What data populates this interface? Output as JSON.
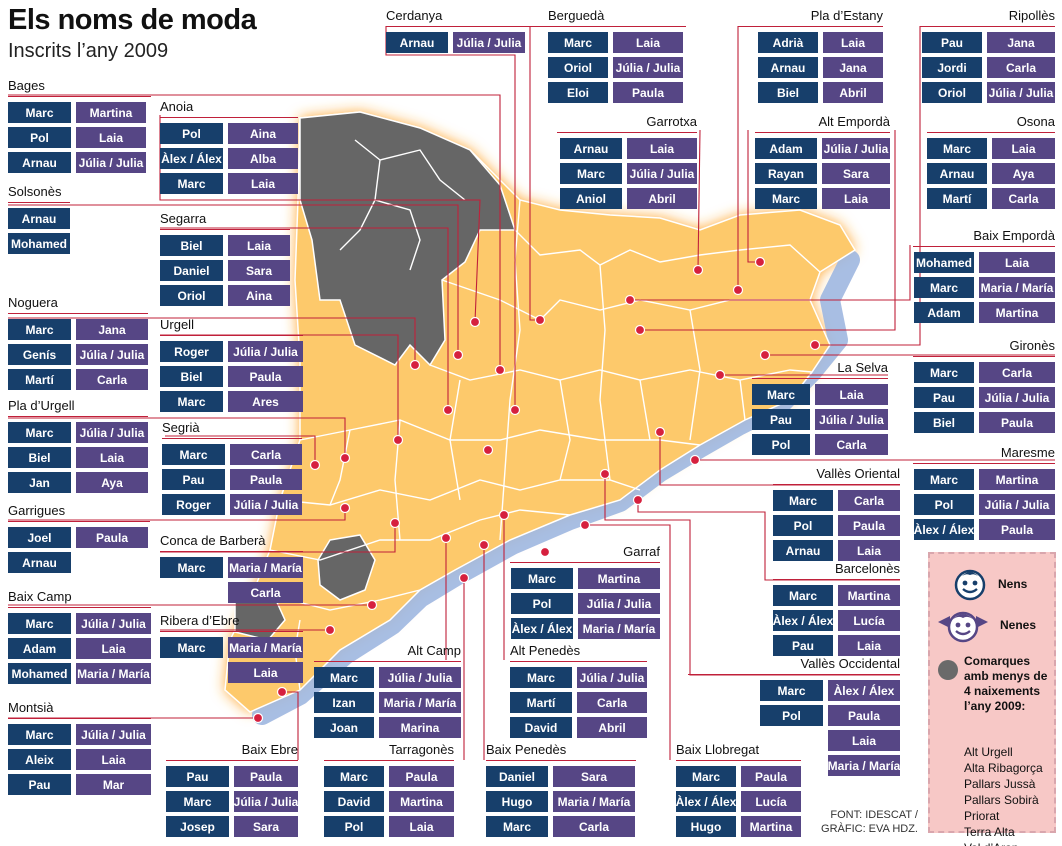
{
  "title": "Els noms de moda",
  "subtitle": "Inscrits l’any 2009",
  "colors": {
    "boys": "#173f6b",
    "girls": "#564685",
    "map_fill": "#fdc96b",
    "glow": "#ffa326",
    "coast": "#9fb7e0",
    "excluded": "#666666",
    "pins": "#d6203e",
    "leader": "#c0203a"
  },
  "regions": [
    {
      "name": "Cerdanya",
      "boys": [
        "Arnau"
      ],
      "girls": [
        "Júlia / Julia"
      ]
    },
    {
      "name": "Berguedà",
      "boys": [
        "Marc",
        "Oriol",
        "Eloi"
      ],
      "girls": [
        "Laia",
        "Júlia / Julia",
        "Paula"
      ]
    },
    {
      "name": "Pla d’Estany",
      "boys": [
        "Adrià",
        "Arnau",
        "Biel"
      ],
      "girls": [
        "Laia",
        "Jana",
        "Abril"
      ]
    },
    {
      "name": "Ripollès",
      "boys": [
        "Pau",
        "Jordi",
        "Oriol"
      ],
      "girls": [
        "Jana",
        "Carla",
        "Júlia / Julia"
      ]
    },
    {
      "name": "Bages",
      "boys": [
        "Marc",
        "Pol",
        "Arnau"
      ],
      "girls": [
        "Martina",
        "Laia",
        "Júlia / Julia"
      ]
    },
    {
      "name": "Anoia",
      "boys": [
        "Pol",
        "Àlex / Álex",
        "Marc"
      ],
      "girls": [
        "Aina",
        "Alba",
        "Laia"
      ]
    },
    {
      "name": "Garrotxa",
      "boys": [
        "Arnau",
        "Marc",
        "Aniol"
      ],
      "girls": [
        "Laia",
        "Júlia / Julia",
        "Abril"
      ]
    },
    {
      "name": "Alt Empordà",
      "boys": [
        "Adam",
        "Rayan",
        "Marc"
      ],
      "girls": [
        "Júlia / Julia",
        "Sara",
        "Laia"
      ]
    },
    {
      "name": "Osona",
      "boys": [
        "Marc",
        "Arnau",
        "Martí"
      ],
      "girls": [
        "Laia",
        "Aya",
        "Carla"
      ]
    },
    {
      "name": "Solsonès",
      "boys": [
        "Arnau",
        "Mohamed"
      ],
      "girls": []
    },
    {
      "name": "Segarra",
      "boys": [
        "Biel",
        "Daniel",
        "Oriol"
      ],
      "girls": [
        "Laia",
        "Sara",
        "Aina"
      ]
    },
    {
      "name": "Baix Empordà",
      "boys": [
        "Mohamed",
        "Marc",
        "Adam"
      ],
      "girls": [
        "Laia",
        "Maria / María",
        "Martina"
      ]
    },
    {
      "name": "Noguera",
      "boys": [
        "Marc",
        "Genís",
        "Martí"
      ],
      "girls": [
        "Jana",
        "Júlia / Julia",
        "Carla"
      ]
    },
    {
      "name": "Urgell",
      "boys": [
        "Roger",
        "Biel",
        "Marc"
      ],
      "girls": [
        "Júlia / Julia",
        "Paula",
        "Ares"
      ]
    },
    {
      "name": "Gironès",
      "boys": [
        "Marc",
        "Pau",
        "Biel"
      ],
      "girls": [
        "Carla",
        "Júlia / Julia",
        "Paula"
      ]
    },
    {
      "name": "La Selva",
      "boys": [
        "Marc",
        "Pau",
        "Pol"
      ],
      "girls": [
        "Laia",
        "Júlia / Julia",
        "Carla"
      ]
    },
    {
      "name": "Pla d’Urgell",
      "boys": [
        "Marc",
        "Biel",
        "Jan"
      ],
      "girls": [
        "Júlia / Julia",
        "Laia",
        "Aya"
      ]
    },
    {
      "name": "Segrià",
      "boys": [
        "Marc",
        "Pau",
        "Roger"
      ],
      "girls": [
        "Carla",
        "Paula",
        "Júlia / Julia"
      ]
    },
    {
      "name": "Maresme",
      "boys": [
        "Marc",
        "Pol",
        "Àlex / Álex"
      ],
      "girls": [
        "Martina",
        "Júlia / Julia",
        "Paula"
      ]
    },
    {
      "name": "Vallès Oriental",
      "boys": [
        "Marc",
        "Pol",
        "Arnau"
      ],
      "girls": [
        "Carla",
        "Paula",
        "Laia"
      ]
    },
    {
      "name": "Garrigues",
      "boys": [
        "Joel",
        "Arnau"
      ],
      "girls": [
        "Paula"
      ]
    },
    {
      "name": "Conca de Barberà",
      "boys": [
        "Marc"
      ],
      "girls": [
        "Maria / María",
        "Carla"
      ]
    },
    {
      "name": "Garraf",
      "boys": [
        "Marc",
        "Pol",
        "Àlex / Álex"
      ],
      "girls": [
        "Martina",
        "Júlia / Julia",
        "Maria / María"
      ]
    },
    {
      "name": "Barcelonès",
      "boys": [
        "Marc",
        "Àlex / Álex",
        "Pau"
      ],
      "girls": [
        "Martina",
        "Lucía",
        "Laia"
      ]
    },
    {
      "name": "Baix Camp",
      "boys": [
        "Marc",
        "Adam",
        "Mohamed"
      ],
      "girls": [
        "Júlia / Julia",
        "Laia",
        "Maria / María"
      ]
    },
    {
      "name": "Ribera d’Ebre",
      "boys": [
        "Marc"
      ],
      "girls": [
        "Maria / María",
        "Laia"
      ]
    },
    {
      "name": "Alt Camp",
      "boys": [
        "Marc",
        "Izan",
        "Joan"
      ],
      "girls": [
        "Júlia / Julia",
        "Maria / María",
        "Marina"
      ]
    },
    {
      "name": "Alt Penedès",
      "boys": [
        "Marc",
        "Martí",
        "David"
      ],
      "girls": [
        "Júlia / Julia",
        "Carla",
        "Abril"
      ]
    },
    {
      "name": "Vallès Occidental",
      "boys": [
        "Marc",
        "Pol"
      ],
      "girls": [
        "Àlex / Álex",
        "Paula",
        "Laia",
        "Maria / María"
      ]
    },
    {
      "name": "Montsià",
      "boys": [
        "Marc",
        "Aleix",
        "Pau"
      ],
      "girls": [
        "Júlia / Julia",
        "Laia",
        "Mar"
      ]
    },
    {
      "name": "Baix Ebre",
      "boys": [
        "Pau",
        "Marc",
        "Josep"
      ],
      "girls": [
        "Paula",
        "Júlia / Julia",
        "Sara"
      ]
    },
    {
      "name": "Tarragonès",
      "boys": [
        "Marc",
        "David",
        "Pol"
      ],
      "girls": [
        "Paula",
        "Martina",
        "Laia"
      ]
    },
    {
      "name": "Baix Penedès",
      "boys": [
        "Daniel",
        "Hugo",
        "Marc"
      ],
      "girls": [
        "Sara",
        "Maria / María",
        "Carla"
      ]
    },
    {
      "name": "Baix Llobregat",
      "boys": [
        "Marc",
        "Àlex / Álex",
        "Hugo"
      ],
      "girls": [
        "Paula",
        "Lucía",
        "Martina"
      ]
    }
  ],
  "legend": {
    "boys_label": "Nens",
    "girls_label": "Nenes",
    "boy_icon": "boy-face-icon",
    "girl_icon": "girl-face-icon",
    "excluded_text": "Comarques amb menys de 4 naixements l’any 2009:",
    "excluded_regions": [
      "Alt Urgell",
      "Alta Ribagorça",
      "Pallars Jussà",
      "Pallars Sobirà",
      "Priorat",
      "Terra Alta",
      "Val d’Aran"
    ]
  },
  "credits": {
    "source": "FONT: IDESCAT /",
    "graphic": "GRÀFIC: EVA HDZ."
  }
}
